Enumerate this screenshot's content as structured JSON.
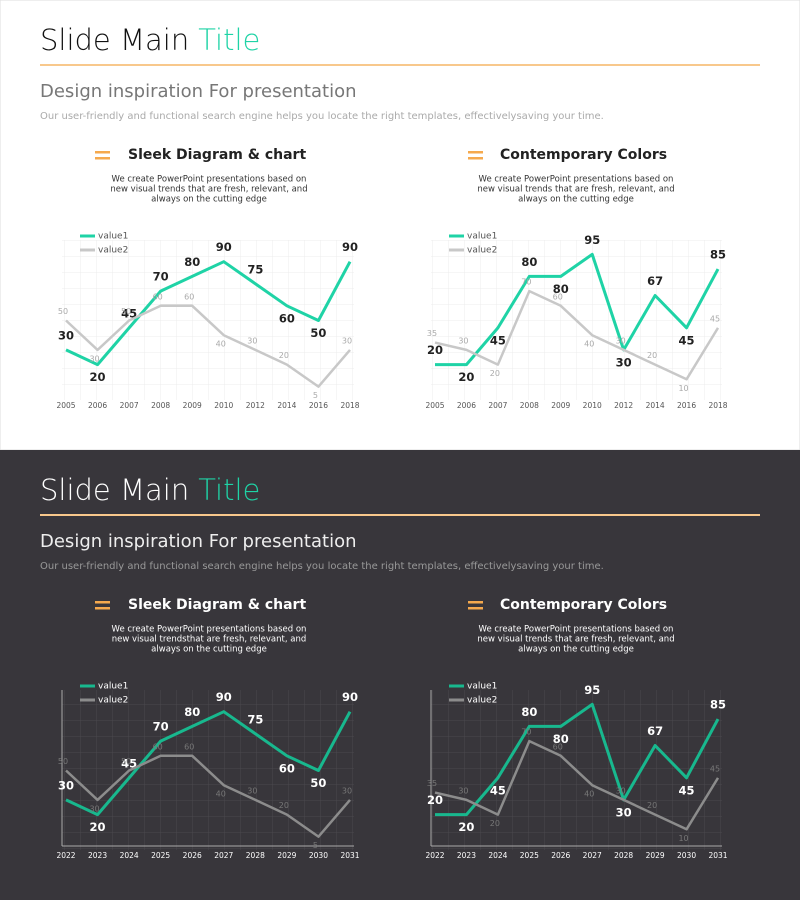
{
  "slides": [
    {
      "title": "Slide Main",
      "title_accent": "Title",
      "subtitle": "Design inspiration For presentation",
      "description": "Our user-friendly and functional search engine helps you locate the right templates, effectivelysaving your time.",
      "sections": [
        {
          "heading": "Sleek Diagram & chart",
          "lines": [
            "We create PowerPoint presentations based on",
            "new visual trends that are fresh, relevant, and",
            "always on the cutting edge"
          ]
        },
        {
          "heading": "Contemporary Colors",
          "lines": [
            "We create PowerPoint presentations based on",
            "new visual trends that are fresh, relevant, and",
            "always on the cutting edge"
          ]
        }
      ]
    },
    {
      "title": "Slide Main",
      "title_accent": "Title",
      "subtitle": "Design inspiration For presentation",
      "description": "Our user-friendly and functional search engine helps you locate the right templates, effectivelysaving your time.",
      "sections": [
        {
          "heading": "Sleek Diagram & chart",
          "lines": [
            "We create PowerPoint presentations based on",
            "new visual trendsthat are fresh, relevant, and",
            "always on the cutting edge"
          ]
        },
        {
          "heading": "Contemporary Colors",
          "lines": [
            "We create PowerPoint presentations based on",
            "new visual trends that are fresh, relevant, and",
            "always on the cutting edge"
          ]
        }
      ]
    }
  ],
  "chart_data": [
    {
      "type": "line",
      "categories": [
        "2005",
        "2006",
        "2007",
        "2008",
        "2009",
        "2010",
        "2012",
        "2014",
        "2016",
        "2018"
      ],
      "series": [
        {
          "name": "value1",
          "color": "#1fd3a6",
          "values": [
            30,
            20,
            45,
            70,
            80,
            90,
            75,
            60,
            50,
            90
          ]
        },
        {
          "name": "value2",
          "color": "#c8c8c8",
          "values": [
            50,
            30,
            50,
            60,
            60,
            40,
            30,
            20,
            5,
            30
          ]
        }
      ],
      "ylim": [
        0,
        100
      ],
      "grid": true,
      "legend": "top-left"
    },
    {
      "type": "line",
      "categories": [
        "2005",
        "2006",
        "2007",
        "2008",
        "2009",
        "2010",
        "2012",
        "2014",
        "2016",
        "2018"
      ],
      "series": [
        {
          "name": "value1",
          "color": "#1fd3a6",
          "values": [
            20,
            20,
            45,
            80,
            80,
            95,
            30,
            67,
            45,
            85
          ]
        },
        {
          "name": "value2",
          "color": "#c8c8c8",
          "values": [
            35,
            30,
            20,
            70,
            60,
            40,
            30,
            20,
            10,
            45
          ]
        }
      ],
      "ylim": [
        0,
        100
      ],
      "grid": true,
      "legend": "top-left"
    },
    {
      "type": "line",
      "categories": [
        "2022",
        "2023",
        "2024",
        "2025",
        "2026",
        "2027",
        "2028",
        "2029",
        "2030",
        "2031"
      ],
      "series": [
        {
          "name": "value1",
          "color": "#18b88e",
          "values": [
            30,
            20,
            45,
            70,
            80,
            90,
            75,
            60,
            50,
            90
          ]
        },
        {
          "name": "value2",
          "color": "#8c8c8c",
          "values": [
            50,
            30,
            50,
            60,
            60,
            40,
            30,
            20,
            5,
            30
          ]
        }
      ],
      "ylim": [
        0,
        100
      ],
      "grid": true,
      "legend": "top-left"
    },
    {
      "type": "line",
      "categories": [
        "2022",
        "2023",
        "2024",
        "2025",
        "2026",
        "2027",
        "2028",
        "2029",
        "2030",
        "2031"
      ],
      "series": [
        {
          "name": "value1",
          "color": "#18b88e",
          "values": [
            20,
            20,
            45,
            80,
            80,
            95,
            30,
            67,
            45,
            85
          ]
        },
        {
          "name": "value2",
          "color": "#8c8c8c",
          "values": [
            35,
            30,
            20,
            70,
            60,
            40,
            30,
            20,
            10,
            45
          ]
        }
      ],
      "ylim": [
        0,
        100
      ],
      "grid": true,
      "legend": "top-left"
    }
  ]
}
